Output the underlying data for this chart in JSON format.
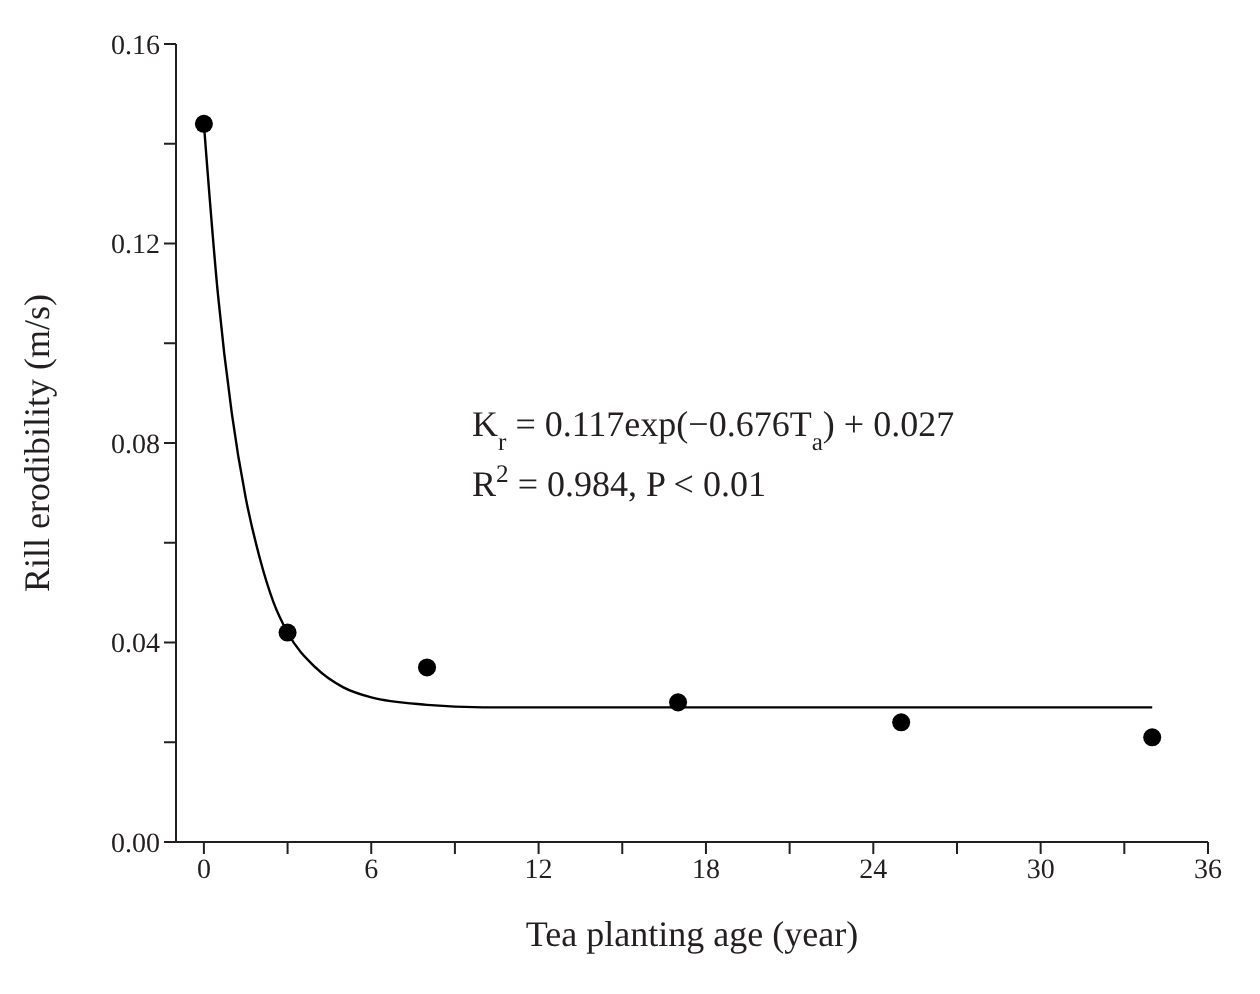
{
  "chart_data": {
    "type": "scatter",
    "xlabel": "Tea planting age (year)",
    "ylabel": "Rill erodibility (m/s)",
    "xlim": [
      -1,
      36
    ],
    "xticks": [
      0,
      {
        "value": 3,
        "label": null
      },
      6,
      {
        "value": 9,
        "label": null
      },
      12,
      {
        "value": 15,
        "label": null
      },
      18,
      {
        "value": 21,
        "label": null
      },
      24,
      {
        "value": 27,
        "label": null
      },
      30,
      {
        "value": 33,
        "label": null
      },
      36
    ],
    "ylim": [
      0,
      0.16
    ],
    "yticks": [
      {
        "value": 0,
        "label": "0.00"
      },
      {
        "value": 0.02,
        "label": null
      },
      0.04,
      {
        "value": 0.06,
        "label": null
      },
      0.08,
      {
        "value": 0.1,
        "label": null
      },
      0.12,
      {
        "value": 0.14,
        "label": null
      },
      0.16
    ],
    "grid": false,
    "annotations": [
      "K$_{r}$ = 0.117exp(−0.676T$_{a}$) + 0.027",
      "R$^{2}$ = 0.984, P < 0.01"
    ],
    "series": [
      {
        "color": "#000000",
        "marker": "circle",
        "x": [
          0,
          3,
          8,
          17,
          25,
          34
        ],
        "values": [
          0.144,
          0.042,
          0.035,
          0.028,
          0.024,
          0.021
        ]
      },
      {
        "type": "line",
        "color": "#000000",
        "marker": "none",
        "line_style": "solid",
        "x": [
          0,
          0.5,
          1,
          1.5,
          2,
          2.5,
          3,
          4,
          5,
          6,
          8,
          10,
          14,
          20,
          34
        ],
        "values": [
          0.144,
          0.11,
          0.086,
          0.069,
          0.057,
          0.048,
          0.042,
          0.035,
          0.031,
          0.029,
          0.0275,
          0.027,
          0.027,
          0.027,
          0.027
        ]
      }
    ]
  }
}
